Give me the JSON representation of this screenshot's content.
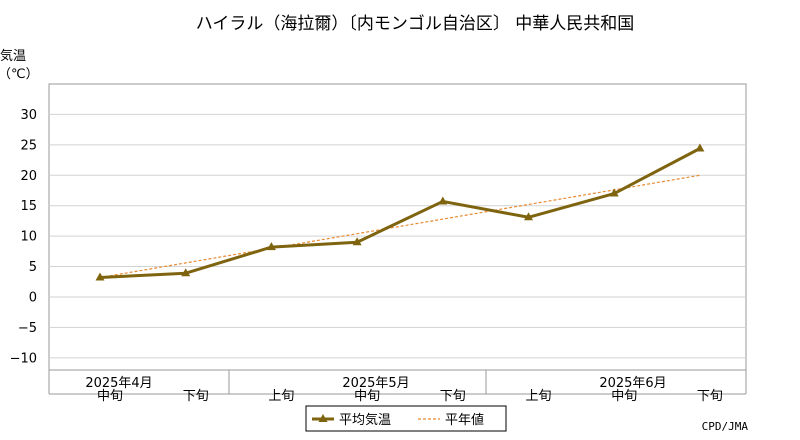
{
  "chart_data": {
    "type": "line",
    "title": "ハイラル（海拉爾）〔内モンゴル自治区〕 中華人民共和国",
    "ylabel_line1": "気温",
    "ylabel_line2": "（℃）",
    "ylim": [
      -12,
      35
    ],
    "yticks": [
      30,
      25,
      20,
      15,
      10,
      5,
      0,
      -5,
      -10
    ],
    "ytick_labels": [
      "30",
      "25",
      "20",
      "15",
      "10",
      "5",
      "0",
      "−5",
      "−10"
    ],
    "grid": true,
    "categories": [
      "中旬",
      "下旬",
      "上旬",
      "中旬",
      "下旬",
      "上旬",
      "中旬",
      "下旬"
    ],
    "month_labels": [
      "2025年4月",
      "2025年5月",
      "2025年6月"
    ],
    "series": [
      {
        "name": "平均気温",
        "values": [
          3.2,
          3.9,
          8.2,
          9.0,
          15.7,
          13.1,
          17.0,
          24.4
        ],
        "color": "#7f6410"
      },
      {
        "name": "平年値",
        "values": [
          3.2,
          5.6,
          8.0,
          10.4,
          12.8,
          15.2,
          17.6,
          20.0
        ],
        "color": "#e88a30"
      }
    ],
    "legend_position": "bottom-center",
    "source": "CPD/JMA"
  }
}
